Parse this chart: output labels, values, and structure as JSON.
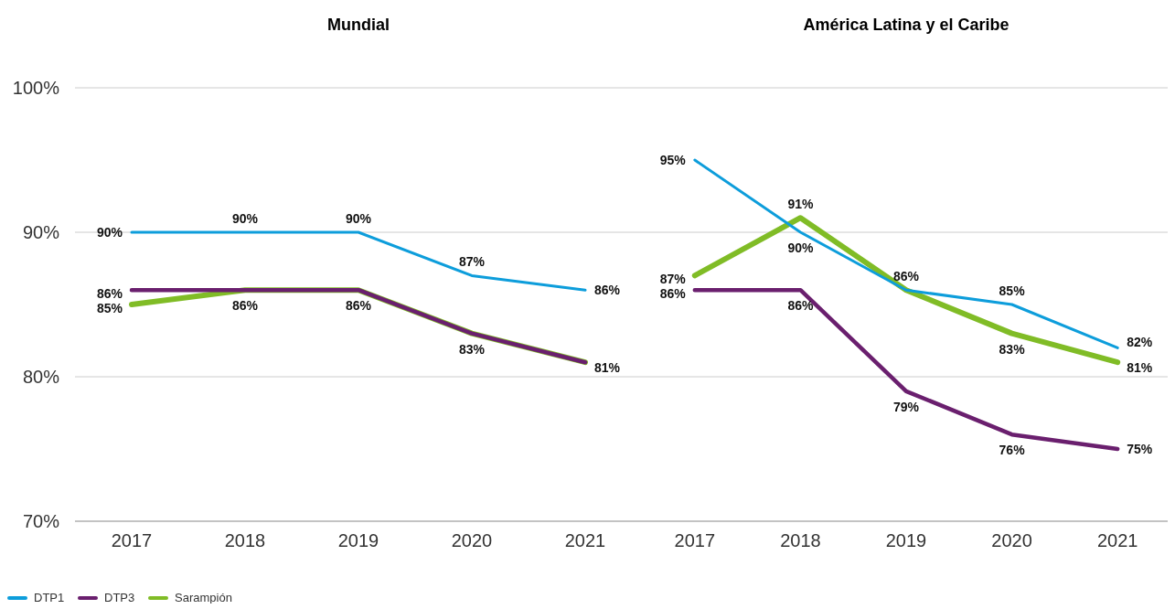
{
  "chart_data": [
    {
      "type": "line",
      "title": "Mundial",
      "categories": [
        "2017",
        "2018",
        "2019",
        "2020",
        "2021"
      ],
      "ylim": [
        70,
        100
      ],
      "yticks": [
        {
          "value": 70,
          "label": "70%"
        },
        {
          "value": 80,
          "label": "80%"
        },
        {
          "value": 90,
          "label": "90%"
        },
        {
          "value": 100,
          "label": "100%"
        }
      ],
      "grid": "y",
      "legend": "bottom left",
      "marker": "none",
      "series": [
        {
          "name": "DTP1",
          "color": "#0d9ddb",
          "values": [
            90,
            90,
            90,
            87,
            86
          ],
          "value_labels": [
            "90%",
            "90%",
            "90%",
            "87%",
            "86%"
          ]
        },
        {
          "name": "DTP3",
          "color": "#6a1f6e",
          "values": [
            86,
            86,
            86,
            83,
            81
          ],
          "value_labels": [
            "86%",
            "86%",
            "86%",
            "83%",
            "81%"
          ]
        },
        {
          "name": "Sarampión",
          "color": "#80bc26",
          "values": [
            85,
            86,
            86,
            83,
            81
          ],
          "value_labels": [
            "85%",
            null,
            null,
            null,
            null
          ]
        }
      ]
    },
    {
      "type": "line",
      "title": "América Latina y el Caribe",
      "categories": [
        "2017",
        "2018",
        "2019",
        "2020",
        "2021"
      ],
      "ylim": [
        70,
        100
      ],
      "yticks": [
        70,
        80,
        90,
        100
      ],
      "grid": "y",
      "tick_labels": "x",
      "marker": "none",
      "series": [
        {
          "color": "#0d9ddb",
          "values": [
            95,
            90,
            86,
            85,
            82
          ],
          "value_labels": [
            "95%",
            "90%",
            null,
            "85%",
            "82%"
          ]
        },
        {
          "color": "#6a1f6e",
          "values": [
            86,
            86,
            79,
            76,
            75
          ],
          "value_labels": [
            "86%",
            "86%",
            "79%",
            "76%",
            "75%"
          ]
        },
        {
          "color": "#80bc26",
          "values": [
            87,
            91,
            86,
            83,
            81
          ],
          "value_labels": [
            "87%",
            "91%",
            "86%",
            "83%",
            "81%"
          ]
        }
      ]
    }
  ]
}
